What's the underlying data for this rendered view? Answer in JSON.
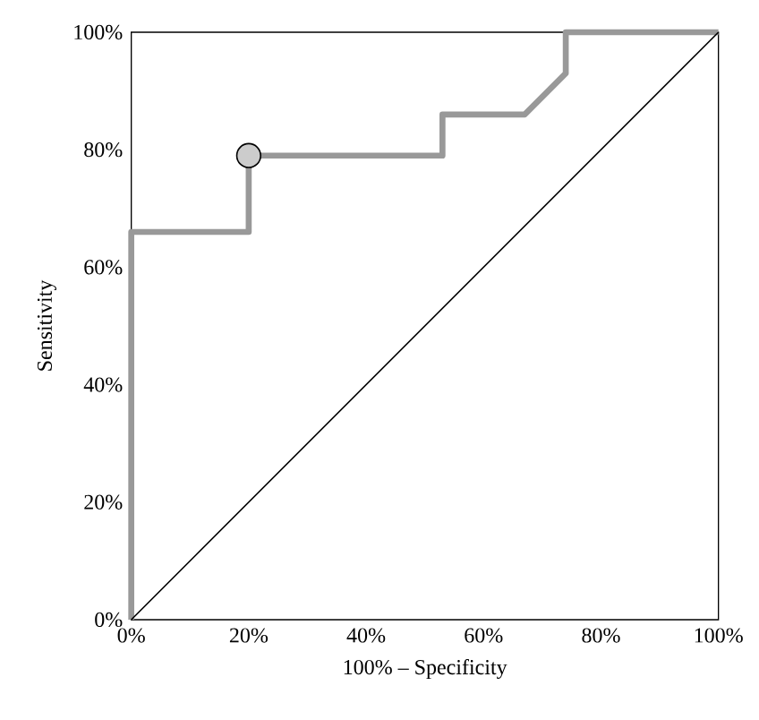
{
  "chart_data": {
    "type": "line",
    "xlabel": "100% – Specificity",
    "ylabel": "Sensitivity",
    "xlim": [
      0,
      100
    ],
    "ylim": [
      0,
      100
    ],
    "xticks": [
      {
        "value": 0,
        "label": "0%"
      },
      {
        "value": 20,
        "label": "20%"
      },
      {
        "value": 40,
        "label": "40%"
      },
      {
        "value": 60,
        "label": "60%"
      },
      {
        "value": 80,
        "label": "80%"
      },
      {
        "value": 100,
        "label": "100%"
      }
    ],
    "yticks": [
      {
        "value": 0,
        "label": "0%"
      },
      {
        "value": 20,
        "label": "20%"
      },
      {
        "value": 40,
        "label": "40%"
      },
      {
        "value": 60,
        "label": "60%"
      },
      {
        "value": 80,
        "label": "80%"
      },
      {
        "value": 100,
        "label": "100%"
      }
    ],
    "series": [
      {
        "color": "#999999",
        "x": [
          0,
          0,
          20,
          20,
          53,
          53,
          67,
          74,
          74,
          100
        ],
        "values": [
          0,
          66,
          66,
          79,
          79,
          86,
          86,
          93,
          100,
          100
        ]
      },
      {
        "color": "#000000",
        "x": [
          0,
          100
        ],
        "values": [
          0,
          100
        ]
      },
      {
        "type": "scatter",
        "color": "#cccccc",
        "marker": "circle",
        "x": [
          20
        ],
        "values": [
          79
        ]
      }
    ]
  }
}
